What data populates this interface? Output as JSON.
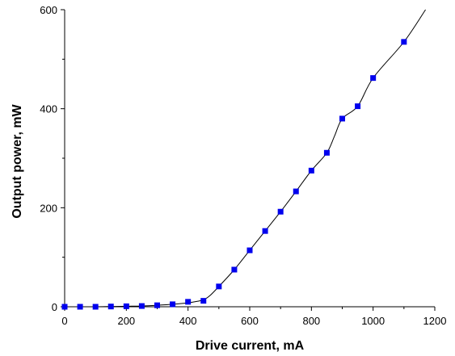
{
  "chart_data": {
    "type": "scatter",
    "title": "",
    "xlabel": "Drive current, mA",
    "ylabel": "Output power, mW",
    "xlim": [
      0,
      1200
    ],
    "ylim": [
      0,
      600
    ],
    "x_ticks": [
      0,
      200,
      400,
      600,
      800,
      1000,
      1200
    ],
    "y_ticks": [
      0,
      200,
      400,
      600
    ],
    "x_tick_labels": [
      "0",
      "200",
      "400",
      "600",
      "800",
      "1000",
      "1200"
    ],
    "y_tick_labels": [
      "0",
      "200",
      "400",
      "600"
    ],
    "grid": false,
    "legend": "none",
    "series": [
      {
        "marker": "square",
        "color": "#0000ee",
        "x": [
          0,
          50,
          100,
          150,
          200,
          250,
          300,
          350,
          400,
          450,
          500,
          550,
          600,
          650,
          700,
          750,
          800,
          850,
          900,
          950,
          1000,
          1100
        ],
        "y": [
          0,
          0,
          0,
          0.5,
          1,
          1.5,
          3,
          5,
          10,
          12,
          41,
          75,
          114,
          153,
          192,
          233,
          275,
          311,
          380,
          405,
          462,
          535
        ]
      }
    ],
    "fit_line": {
      "color": "#000000",
      "x": [
        0,
        50,
        100,
        150,
        200,
        250,
        300,
        350,
        400,
        430,
        450,
        470,
        500,
        550,
        600,
        650,
        700,
        750,
        800,
        850,
        875,
        900,
        950,
        1000,
        1100,
        1170
      ],
      "y": [
        0,
        0,
        0,
        0.5,
        1,
        1.5,
        3,
        5,
        8,
        11,
        14,
        22,
        41,
        75,
        114,
        153,
        192,
        233,
        275,
        311,
        345,
        380,
        405,
        462,
        535,
        600
      ]
    }
  }
}
